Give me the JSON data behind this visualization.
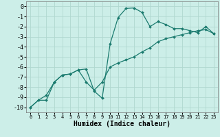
{
  "xlabel": "Humidex (Indice chaleur)",
  "bg_color": "#cceee8",
  "grid_color": "#b0d8d0",
  "line_color": "#1a7a6e",
  "xlim": [
    -0.5,
    23.5
  ],
  "ylim": [
    -10.5,
    0.5
  ],
  "yticks": [
    0,
    -1,
    -2,
    -3,
    -4,
    -5,
    -6,
    -7,
    -8,
    -9,
    -10
  ],
  "xticks": [
    0,
    1,
    2,
    3,
    4,
    5,
    6,
    7,
    8,
    9,
    10,
    11,
    12,
    13,
    14,
    15,
    16,
    17,
    18,
    19,
    20,
    21,
    22,
    23
  ],
  "curve1_x": [
    0,
    1,
    2,
    3,
    4,
    5,
    6,
    7,
    8,
    9,
    10,
    11,
    12,
    13,
    14,
    15,
    16,
    17,
    18,
    19,
    20,
    21,
    22,
    23
  ],
  "curve1_y": [
    -10,
    -9.3,
    -9.3,
    -7.5,
    -6.8,
    -6.7,
    -6.3,
    -6.2,
    -8.4,
    -9.1,
    -3.7,
    -1.1,
    -0.2,
    -0.15,
    -0.6,
    -2.0,
    -1.5,
    -1.8,
    -2.2,
    -2.2,
    -2.4,
    -2.6,
    -2.0,
    -2.7
  ],
  "curve2_x": [
    0,
    1,
    2,
    3,
    4,
    5,
    6,
    7,
    8,
    9,
    10,
    11,
    12,
    13,
    14,
    15,
    16,
    17,
    18,
    19,
    20,
    21,
    22,
    23
  ],
  "curve2_y": [
    -10,
    -9.3,
    -8.8,
    -7.5,
    -6.8,
    -6.7,
    -6.3,
    -7.5,
    -8.3,
    -7.5,
    -6.0,
    -5.6,
    -5.3,
    -5.0,
    -4.5,
    -4.1,
    -3.5,
    -3.2,
    -3.0,
    -2.8,
    -2.6,
    -2.4,
    -2.3,
    -2.7
  ],
  "font_size_label": 7,
  "font_size_tick_x": 5,
  "font_size_tick_y": 6,
  "marker_size": 2.0,
  "line_width": 0.9
}
